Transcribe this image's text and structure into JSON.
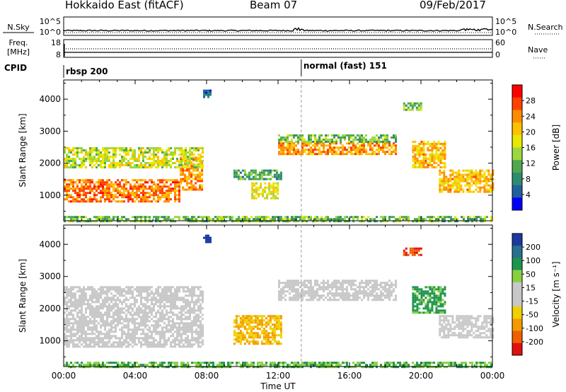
{
  "header": {
    "station": "Hokkaido East (fitACF)",
    "beam": "Beam 07",
    "date": "09/Feb/2017"
  },
  "strips": {
    "nsky_label": "N.Sky",
    "nsky_left_ticks": [
      "10^5",
      "10^0"
    ],
    "nsky_right_ticks": [
      "10^5",
      "10^0"
    ],
    "nsearch_label": "N.Search",
    "freq_label": "Freq.",
    "freq_unit": "[MHz]",
    "freq_ticks": [
      "18",
      "8"
    ],
    "nave_label": "Nave",
    "nave_ticks": [
      "60",
      "0"
    ],
    "cpid_label": "CPID",
    "cpid_segments": [
      {
        "label": "rbsp 200",
        "start_hour": 0
      },
      {
        "label": "normal (fast) 151",
        "start_hour": 13.3
      }
    ]
  },
  "colorbars": {
    "power": {
      "label": "Power [dB]",
      "ticks": [
        "28",
        "24",
        "20",
        "16",
        "12",
        "8",
        "4"
      ],
      "colors": [
        "#ff0000",
        "#ff4000",
        "#ff8c00",
        "#ffc000",
        "#e8e800",
        "#9bd840",
        "#4fa850",
        "#2e8c6e",
        "#2060a0",
        "#0000ff"
      ]
    },
    "velocity": {
      "label": "Velocity [m s⁻¹]",
      "ticks": [
        "200",
        "100",
        "50",
        "15",
        "-15",
        "-50",
        "-100",
        "-200"
      ],
      "colors": [
        "#1a3aa0",
        "#2a6f8e",
        "#1e9450",
        "#88d040",
        "#c8c8c8",
        "#c8c8c8",
        "#f0d000",
        "#f49a00",
        "#f06000",
        "#e01010"
      ]
    }
  },
  "chart_data": [
    {
      "type": "heatmap",
      "panel": "power",
      "ylabel": "Slant Range [km]",
      "xlabel": "",
      "ylim": [
        200,
        4600
      ],
      "xlim": [
        "00:00",
        "24:00"
      ],
      "y_ticks": [
        1000,
        2000,
        3000,
        4000
      ],
      "regions": [
        {
          "t0": 0.0,
          "t1": 6.5,
          "r0": 800,
          "r1": 1500,
          "level": 26
        },
        {
          "t0": 6.5,
          "t1": 7.8,
          "r0": 1200,
          "r1": 2200,
          "level": 24
        },
        {
          "t0": 0.0,
          "t1": 7.8,
          "r0": 1900,
          "r1": 2500,
          "level": 16
        },
        {
          "t0": 12.0,
          "t1": 18.6,
          "r0": 2300,
          "r1": 2650,
          "level": 24
        },
        {
          "t0": 12.0,
          "t1": 18.6,
          "r0": 2650,
          "r1": 2900,
          "level": 12
        },
        {
          "t0": 19.5,
          "t1": 21.4,
          "r0": 1900,
          "r1": 2700,
          "level": 22
        },
        {
          "t0": 21.0,
          "t1": 24.0,
          "r0": 1100,
          "r1": 1800,
          "level": 22
        },
        {
          "t0": 9.5,
          "t1": 12.2,
          "r0": 1500,
          "r1": 1800,
          "level": 10
        },
        {
          "t0": 10.5,
          "t1": 12.0,
          "r0": 900,
          "r1": 1400,
          "level": 18
        },
        {
          "t0": 0.0,
          "t1": 24.0,
          "r0": 200,
          "r1": 350,
          "level": 12
        },
        {
          "t0": 7.8,
          "t1": 8.2,
          "r0": 4100,
          "r1": 4300,
          "level": 4
        },
        {
          "t0": 19.0,
          "t1": 20.0,
          "r0": 3700,
          "r1": 3900,
          "level": 12
        }
      ]
    },
    {
      "type": "heatmap",
      "panel": "velocity",
      "ylabel": "Slant Range [km]",
      "xlabel": "Time UT",
      "ylim": [
        200,
        4600
      ],
      "xlim": [
        "00:00",
        "24:00"
      ],
      "x_ticks": [
        "00:00",
        "04:00",
        "08:00",
        "12:00",
        "16:00",
        "20:00",
        "00:00"
      ],
      "y_ticks": [
        1000,
        2000,
        3000,
        4000
      ],
      "regions": [
        {
          "t0": 0.0,
          "t1": 7.8,
          "r0": 800,
          "r1": 2700,
          "level": 0
        },
        {
          "t0": 12.0,
          "t1": 18.6,
          "r0": 2300,
          "r1": 2900,
          "level": 0
        },
        {
          "t0": 21.0,
          "t1": 24.0,
          "r0": 1100,
          "r1": 1800,
          "level": 0
        },
        {
          "t0": 19.5,
          "t1": 21.4,
          "r0": 1900,
          "r1": 2700,
          "level": 40
        },
        {
          "t0": 9.5,
          "t1": 12.2,
          "r0": 900,
          "r1": 1800,
          "level": -30
        },
        {
          "t0": 0.0,
          "t1": 24.0,
          "r0": 200,
          "r1": 350,
          "level": 30
        },
        {
          "t0": 7.8,
          "t1": 8.2,
          "r0": 4100,
          "r1": 4300,
          "level": 200
        },
        {
          "t0": 19.0,
          "t1": 20.0,
          "r0": 3700,
          "r1": 3900,
          "level": -150
        }
      ]
    }
  ]
}
